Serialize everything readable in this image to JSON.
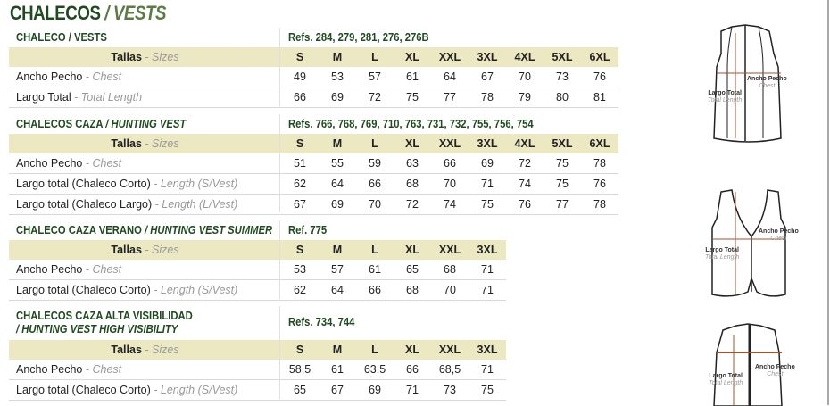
{
  "title": {
    "es": "CHALECOS",
    "sep": " / ",
    "en": "VESTS"
  },
  "colors": {
    "green": "#1f4a1f",
    "size_band": "#ebe8c2",
    "muted": "#999999"
  },
  "sections": [
    {
      "name_es": "CHALECO / VESTS",
      "name_en": "",
      "refs": "Refs. 284, 279, 281, 276, 276B",
      "sizes_label": {
        "es": "Tallas",
        "en": "Sizes"
      },
      "sizes": [
        "S",
        "M",
        "L",
        "XL",
        "XXL",
        "3XL",
        "4XL",
        "5XL",
        "6XL"
      ],
      "rows": [
        {
          "es": "Ancho Pecho",
          "en": "Chest",
          "values": [
            "49",
            "53",
            "57",
            "61",
            "64",
            "67",
            "70",
            "73",
            "76"
          ]
        },
        {
          "es": "Largo Total",
          "en": "Total Length",
          "values": [
            "66",
            "69",
            "72",
            "75",
            "77",
            "78",
            "79",
            "80",
            "81"
          ]
        }
      ]
    },
    {
      "name_es": "CHALECOS CAZA",
      "name_en": "/ HUNTING VEST",
      "refs": "Refs. 766, 768, 769, 710, 763, 731, 732, 755, 756, 754",
      "sizes_label": {
        "es": "Tallas",
        "en": "Sizes"
      },
      "sizes": [
        "S",
        "M",
        "L",
        "XL",
        "XXL",
        "3XL",
        "4XL",
        "5XL",
        "6XL"
      ],
      "rows": [
        {
          "es": "Ancho Pecho",
          "en": "Chest",
          "values": [
            "51",
            "55",
            "59",
            "63",
            "66",
            "69",
            "72",
            "75",
            "78"
          ]
        },
        {
          "es": "Largo total (Chaleco Corto)",
          "en": "Length (S/Vest)",
          "values": [
            "62",
            "64",
            "66",
            "68",
            "70",
            "71",
            "74",
            "75",
            "76"
          ]
        },
        {
          "es": "Largo total (Chaleco Largo)",
          "en": "Length (L/Vest)",
          "values": [
            "67",
            "69",
            "70",
            "72",
            "74",
            "75",
            "76",
            "77",
            "78"
          ]
        }
      ]
    },
    {
      "name_es": "CHALECO CAZA VERANO",
      "name_en": "/ HUNTING VEST SUMMER",
      "refs": "Ref. 775",
      "sizes_label": {
        "es": "Tallas",
        "en": "Sizes"
      },
      "sizes": [
        "S",
        "M",
        "L",
        "XL",
        "XXL",
        "3XL"
      ],
      "rows": [
        {
          "es": "Ancho Pecho",
          "en": "Chest",
          "values": [
            "53",
            "57",
            "61",
            "65",
            "68",
            "71"
          ]
        },
        {
          "es": "Largo total (Chaleco Corto)",
          "en": "Length (S/Vest)",
          "values": [
            "62",
            "64",
            "66",
            "68",
            "70",
            "71"
          ]
        }
      ]
    },
    {
      "name_es": "CHALECOS CAZA ALTA VISIBILIDAD",
      "name_en": "/ HUNTING VEST HIGH VISIBILITY",
      "refs": "Refs. 734, 744",
      "sizes_label": {
        "es": "Tallas",
        "en": "Sizes"
      },
      "sizes": [
        "S",
        "M",
        "L",
        "XL",
        "XXL",
        "3XL"
      ],
      "rows": [
        {
          "es": "Ancho Pecho",
          "en": "Chest",
          "values": [
            "58,5",
            "61",
            "63,5",
            "66",
            "68,5",
            "71"
          ]
        },
        {
          "es": "Largo total (Chaleco Corto)",
          "en": "Length (S/Vest)",
          "values": [
            "65",
            "67",
            "69",
            "71",
            "73",
            "75"
          ]
        }
      ]
    }
  ],
  "diagram_labels": {
    "length_es": "Largo Total",
    "length_en": "Total Length",
    "chest_es": "Ancho Pecho",
    "chest_en": "Chest"
  }
}
